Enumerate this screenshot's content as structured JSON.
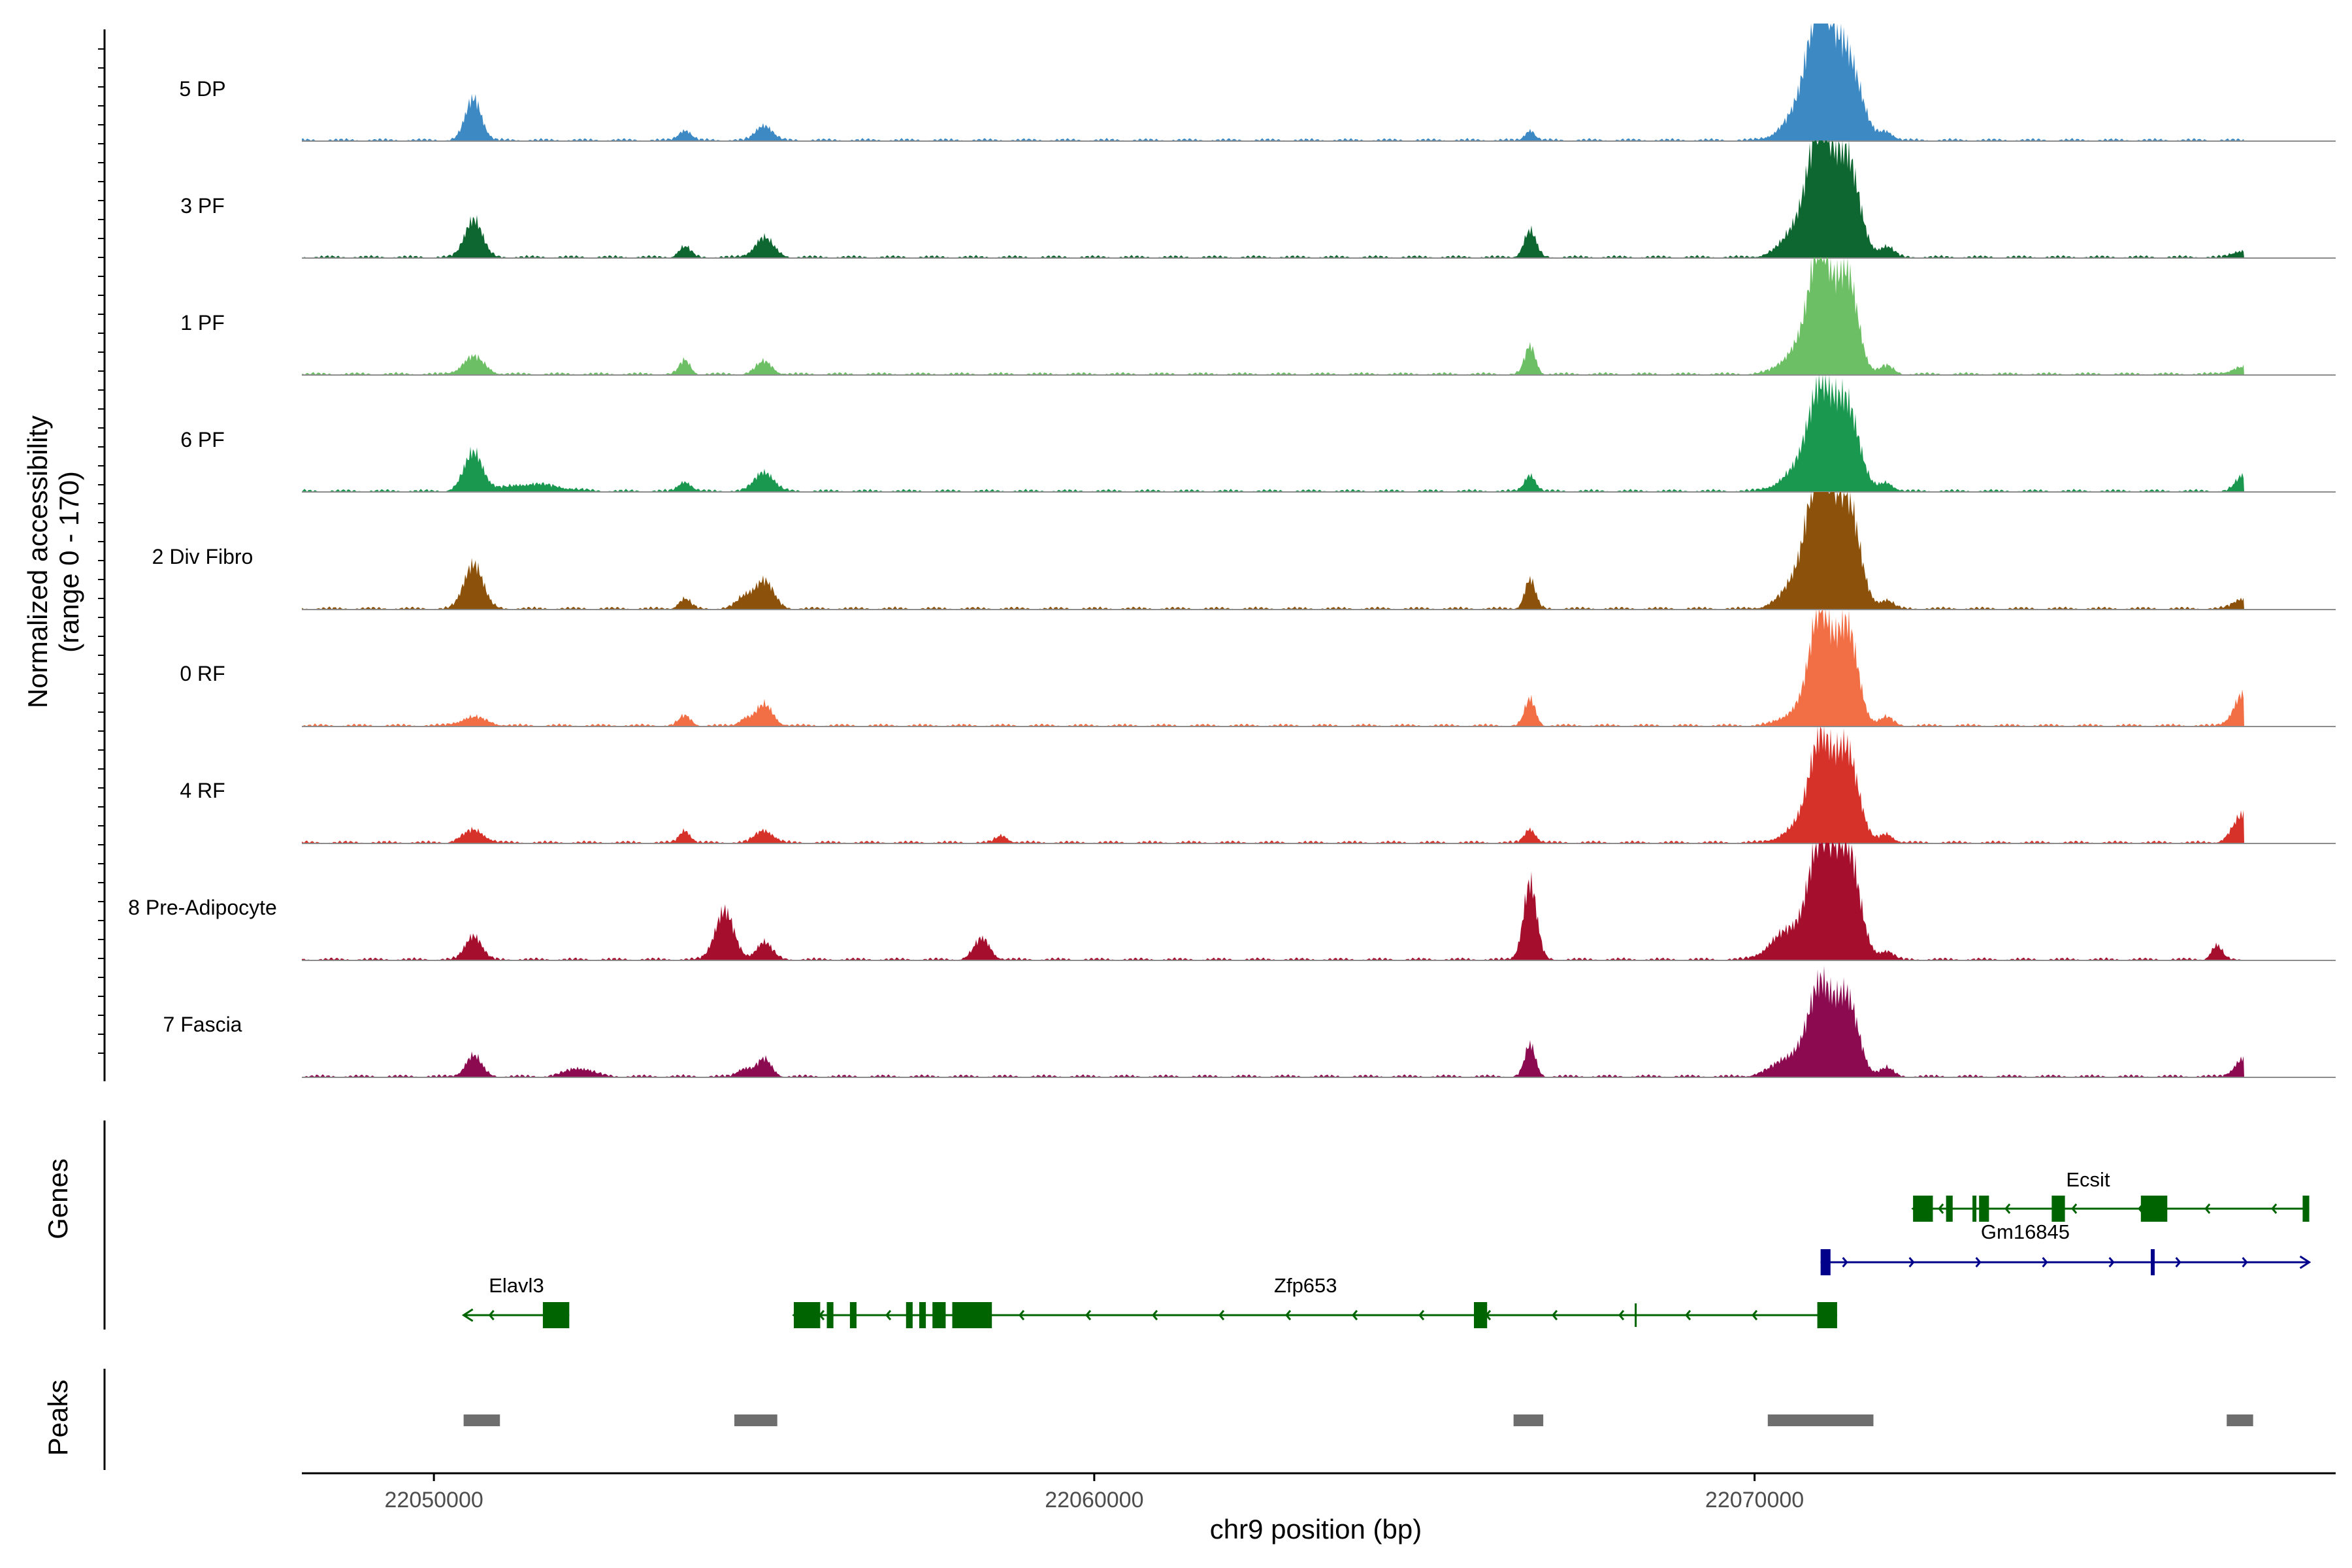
{
  "chart_data": {
    "type": "area",
    "region": {
      "chrom": "chr9",
      "start": 22048000,
      "end": 22078800
    },
    "xlabel": "chr9 position (bp)",
    "xticks": [
      22050000,
      22060000,
      22070000
    ],
    "ylabel_line1": "Normalized accessibility",
    "ylabel_line2": "(range 0 - 170)",
    "ylim": [
      0,
      170
    ],
    "panel_titles": {
      "genes": "Genes",
      "peaks": "Peaks"
    },
    "tracks": [
      {
        "name": "5 DP",
        "color": "#3C89C4",
        "peaks": [
          [
            22050600,
            60,
            120
          ],
          [
            22053800,
            15,
            90
          ],
          [
            22055000,
            22,
            120
          ],
          [
            22066600,
            15,
            70
          ],
          [
            22070800,
            55,
            280
          ],
          [
            22071000,
            155,
            170
          ],
          [
            22071400,
            120,
            200
          ],
          [
            22072000,
            12,
            100
          ]
        ]
      },
      {
        "name": "3 PF",
        "color": "#0E6630",
        "peaks": [
          [
            22050600,
            55,
            130
          ],
          [
            22053800,
            15,
            90
          ],
          [
            22055000,
            28,
            140
          ],
          [
            22066600,
            38,
            90
          ],
          [
            22070800,
            60,
            280
          ],
          [
            22071000,
            145,
            160
          ],
          [
            22071400,
            140,
            180
          ],
          [
            22072000,
            15,
            110
          ],
          [
            22077400,
            10,
            140
          ]
        ]
      },
      {
        "name": "1 PF",
        "color": "#6DBF65",
        "peaks": [
          [
            22050600,
            25,
            160
          ],
          [
            22053800,
            20,
            80
          ],
          [
            22055000,
            18,
            120
          ],
          [
            22066600,
            40,
            80
          ],
          [
            22070800,
            50,
            280
          ],
          [
            22071000,
            150,
            150
          ],
          [
            22071400,
            140,
            160
          ],
          [
            22072000,
            12,
            100
          ],
          [
            22077400,
            10,
            180
          ]
        ]
      },
      {
        "name": "6 PF",
        "color": "#1A9850",
        "peaks": [
          [
            22050600,
            55,
            140
          ],
          [
            22051500,
            10,
            400
          ],
          [
            22053800,
            14,
            90
          ],
          [
            22055000,
            28,
            140
          ],
          [
            22066600,
            24,
            80
          ],
          [
            22070800,
            40,
            300
          ],
          [
            22071000,
            115,
            170
          ],
          [
            22071400,
            120,
            180
          ],
          [
            22072000,
            12,
            100
          ],
          [
            22077400,
            22,
            110
          ]
        ]
      },
      {
        "name": "2 Div Fibro",
        "color": "#8C510A",
        "peaks": [
          [
            22050600,
            65,
            140
          ],
          [
            22053800,
            14,
            90
          ],
          [
            22054700,
            16,
            120
          ],
          [
            22055000,
            40,
            140
          ],
          [
            22066600,
            42,
            80
          ],
          [
            22070800,
            60,
            280
          ],
          [
            22071000,
            160,
            170
          ],
          [
            22071400,
            155,
            180
          ],
          [
            22072000,
            12,
            100
          ],
          [
            22077400,
            15,
            140
          ]
        ]
      },
      {
        "name": "0 RF",
        "color": "#F26F45",
        "peaks": [
          [
            22050600,
            12,
            200
          ],
          [
            22053800,
            14,
            90
          ],
          [
            22054700,
            10,
            80
          ],
          [
            22055000,
            30,
            130
          ],
          [
            22066600,
            38,
            80
          ],
          [
            22070800,
            30,
            280
          ],
          [
            22071000,
            145,
            150
          ],
          [
            22071400,
            140,
            160
          ],
          [
            22072000,
            12,
            100
          ],
          [
            22077400,
            45,
            140
          ]
        ]
      },
      {
        "name": "4 RF",
        "color": "#D6322A",
        "peaks": [
          [
            22050600,
            18,
            160
          ],
          [
            22053800,
            18,
            80
          ],
          [
            22055000,
            18,
            130
          ],
          [
            22058600,
            10,
            90
          ],
          [
            22066600,
            20,
            80
          ],
          [
            22070800,
            30,
            280
          ],
          [
            22071000,
            125,
            160
          ],
          [
            22071400,
            130,
            170
          ],
          [
            22072000,
            12,
            100
          ],
          [
            22077400,
            40,
            150
          ]
        ]
      },
      {
        "name": "8 Pre-Adipocyte",
        "color": "#A50F2D",
        "peaks": [
          [
            22050600,
            35,
            120
          ],
          [
            22054400,
            70,
            140
          ],
          [
            22055000,
            25,
            120
          ],
          [
            22058300,
            30,
            120
          ],
          [
            22066600,
            110,
            100
          ],
          [
            22070500,
            40,
            250
          ],
          [
            22071000,
            165,
            180
          ],
          [
            22071400,
            160,
            180
          ],
          [
            22072000,
            12,
            100
          ],
          [
            22077000,
            20,
            80
          ]
        ]
      },
      {
        "name": "7 Fascia",
        "color": "#8B0A50",
        "peaks": [
          [
            22050600,
            30,
            120
          ],
          [
            22052200,
            12,
            200
          ],
          [
            22054700,
            12,
            100
          ],
          [
            22055000,
            25,
            110
          ],
          [
            22066600,
            45,
            80
          ],
          [
            22070600,
            30,
            280
          ],
          [
            22071000,
            120,
            170
          ],
          [
            22071400,
            110,
            170
          ],
          [
            22072000,
            12,
            100
          ],
          [
            22077400,
            25,
            130
          ]
        ]
      }
    ],
    "genes": [
      {
        "name": "Elavl3",
        "color": "#006400",
        "strand": "-",
        "start": 22050450,
        "end": 22052050,
        "exons": [
          [
            22051650,
            22052050
          ]
        ],
        "row": 2,
        "label_pos": 22051250
      },
      {
        "name": "Zfp653",
        "color": "#006400",
        "strand": "-",
        "start": 22055450,
        "end": 22071250,
        "exons": [
          [
            22055450,
            22055850
          ],
          [
            22055950,
            22056050
          ],
          [
            22056300,
            22056400
          ],
          [
            22057150,
            22057250
          ],
          [
            22057350,
            22057450
          ],
          [
            22057550,
            22057750
          ],
          [
            22057850,
            22058450
          ],
          [
            22065750,
            22065950
          ],
          [
            22070950,
            22071250
          ]
        ],
        "introns_marks": [
          22068200
        ],
        "row": 2,
        "label_pos": 22063200
      },
      {
        "name": "Ecsit",
        "color": "#006400",
        "strand": "-",
        "start": 22072400,
        "end": 22078400,
        "exons": [
          [
            22072400,
            22072700
          ],
          [
            22072900,
            22073000
          ],
          [
            22073300,
            22073350
          ],
          [
            22073400,
            22073550
          ],
          [
            22074500,
            22074700
          ],
          [
            22075850,
            22076250
          ],
          [
            22078300,
            22078400
          ]
        ],
        "row": 0,
        "label_pos": 22075050
      },
      {
        "name": "Gm16845",
        "color": "#00008B",
        "strand": "+",
        "start": 22071000,
        "end": 22078400,
        "exons": [
          [
            22071000,
            22071150
          ],
          [
            22076000,
            22076050
          ]
        ],
        "row": 1,
        "label_pos": 22074100
      }
    ],
    "peak_regions": [
      [
        22050450,
        22051000
      ],
      [
        22054550,
        22055200
      ],
      [
        22066350,
        22066800
      ],
      [
        22070200,
        22071800
      ],
      [
        22077150,
        22077550
      ]
    ]
  }
}
